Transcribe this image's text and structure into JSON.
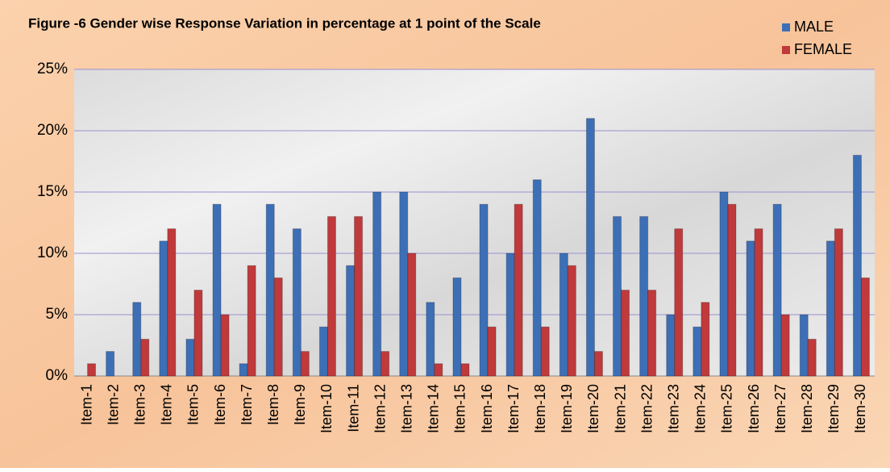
{
  "chart_data": {
    "type": "bar",
    "title": "Figure -6 Gender wise Response Variation in percentage at 1 point of the Scale",
    "categories": [
      "Item-1",
      "Item-2",
      "Item-3",
      "Item-4",
      "Item-5",
      "Item-6",
      "Item-7",
      "Item-8",
      "Item-9",
      "Item-10",
      "Item-11",
      "Item-12",
      "Item-13",
      "Item-14",
      "Item-15",
      "Item-16",
      "Item-17",
      "Item-18",
      "Item-19",
      "Item-20",
      "Item-21",
      "Item-22",
      "Item-23",
      "Item-24",
      "Item-25",
      "Item-26",
      "Item-27",
      "Item-28",
      "Item-29",
      "Item-30"
    ],
    "series": [
      {
        "name": "MALE",
        "color": "#3d6fb6",
        "values": [
          0,
          2,
          6,
          11,
          3,
          14,
          1,
          14,
          12,
          4,
          9,
          15,
          15,
          6,
          8,
          14,
          10,
          16,
          10,
          21,
          13,
          13,
          5,
          4,
          15,
          11,
          14,
          5,
          11,
          18
        ]
      },
      {
        "name": "FEMALE",
        "color": "#c0393b",
        "values": [
          1,
          0,
          3,
          12,
          7,
          5,
          9,
          8,
          2,
          13,
          13,
          2,
          10,
          1,
          1,
          4,
          14,
          4,
          9,
          2,
          7,
          7,
          12,
          6,
          14,
          12,
          5,
          3,
          12,
          8
        ]
      }
    ],
    "ylim": [
      0,
      25
    ],
    "yticks": [
      {
        "value": 0,
        "label": "0%"
      },
      {
        "value": 5,
        "label": "5%"
      },
      {
        "value": 10,
        "label": "10%"
      },
      {
        "value": 15,
        "label": "15%"
      },
      {
        "value": 20,
        "label": "20%"
      },
      {
        "value": 25,
        "label": "25%"
      }
    ],
    "grid": true,
    "legend": "top-right"
  }
}
